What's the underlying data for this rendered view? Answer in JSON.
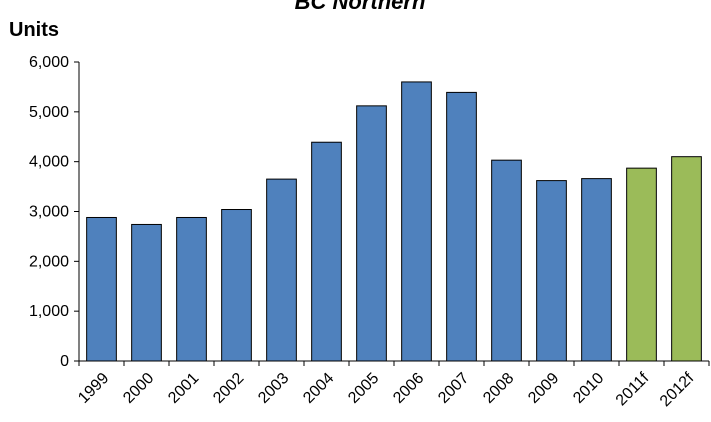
{
  "chart_data": {
    "type": "bar",
    "title": "BC Northern",
    "ylabel": "Units",
    "xlabel": "",
    "ylim": [
      0,
      6000
    ],
    "yticks": [
      0,
      1000,
      2000,
      3000,
      4000,
      5000,
      6000
    ],
    "ytick_labels": [
      "0",
      "1,000",
      "2,000",
      "3,000",
      "4,000",
      "5,000",
      "6,000"
    ],
    "categories": [
      "1999",
      "2000",
      "2001",
      "2002",
      "2003",
      "2004",
      "2005",
      "2006",
      "2007",
      "2008",
      "2009",
      "2010",
      "2011f",
      "2012f"
    ],
    "values": [
      2880,
      2740,
      2880,
      3040,
      3650,
      4390,
      5120,
      5600,
      5390,
      4030,
      3620,
      3660,
      3870,
      4100
    ],
    "bar_colors": [
      "#4f81bd",
      "#4f81bd",
      "#4f81bd",
      "#4f81bd",
      "#4f81bd",
      "#4f81bd",
      "#4f81bd",
      "#4f81bd",
      "#4f81bd",
      "#4f81bd",
      "#4f81bd",
      "#4f81bd",
      "#9bbb59",
      "#9bbb59"
    ],
    "grid": false,
    "legend": "none"
  }
}
